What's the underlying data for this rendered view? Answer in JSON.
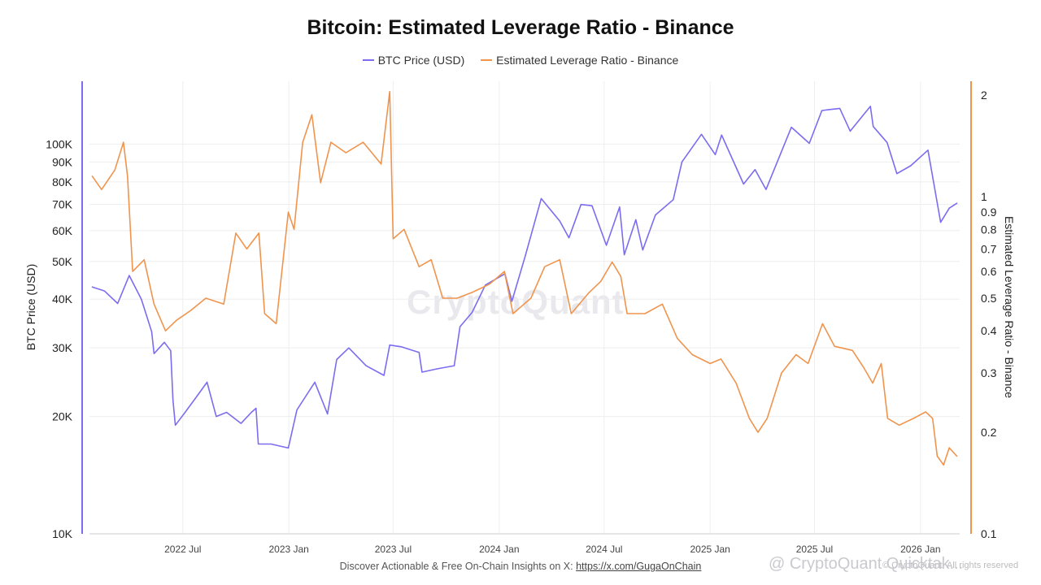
{
  "header": {
    "title": "Bitcoin: Estimated Leverage Ratio - Binance"
  },
  "legend": {
    "btc_label": "BTC Price (USD)",
    "elr_label": "Estimated Leverage Ratio - Binance"
  },
  "footer": {
    "text": "Discover Actionable & Free On-Chain Insights on X:",
    "link": "https://x.com/GugaOnChain",
    "badge": "@ CryptoQuant Quicktak...",
    "copyright": "© CryptoQuant. All rights reserved"
  },
  "watermark": "CryptoQuant",
  "colors": {
    "btc": "#7b6cf0",
    "elr": "#f0944d",
    "grid": "#eeeeee",
    "axis_text": "#222222"
  },
  "chart_data": {
    "type": "line",
    "title": "Bitcoin: Estimated Leverage Ratio - Binance",
    "x_range": [
      "2022-01-20",
      "2026-03-10"
    ],
    "x_ticks": [
      {
        "label": "2022 Jul",
        "date": "2022-07-01"
      },
      {
        "label": "2023 Jan",
        "date": "2023-01-01"
      },
      {
        "label": "2023 Jul",
        "date": "2023-07-01"
      },
      {
        "label": "2024 Jan",
        "date": "2024-01-01"
      },
      {
        "label": "2024 Jul",
        "date": "2024-07-01"
      },
      {
        "label": "2025 Jan",
        "date": "2025-01-01"
      },
      {
        "label": "2025 Jul",
        "date": "2025-07-01"
      },
      {
        "label": "2026 Jan",
        "date": "2026-01-01"
      }
    ],
    "y_left": {
      "label": "BTC Price (USD)",
      "scale": "log",
      "range": [
        10000,
        145000
      ],
      "ticks": [
        {
          "label": "10K",
          "value": 10000
        },
        {
          "label": "20K",
          "value": 20000
        },
        {
          "label": "30K",
          "value": 30000
        },
        {
          "label": "40K",
          "value": 40000
        },
        {
          "label": "50K",
          "value": 50000
        },
        {
          "label": "60K",
          "value": 60000
        },
        {
          "label": "70K",
          "value": 70000
        },
        {
          "label": "80K",
          "value": 80000
        },
        {
          "label": "90K",
          "value": 90000
        },
        {
          "label": "100K",
          "value": 100000
        }
      ]
    },
    "y_right": {
      "label": "Estimated Leverage Ratio - Binance",
      "scale": "log",
      "range": [
        0.1,
        2.2
      ],
      "ticks": [
        {
          "label": "2",
          "value": 2
        },
        {
          "label": "1",
          "value": 1
        },
        {
          "label": "0.9",
          "value": 0.9
        },
        {
          "label": "0.8",
          "value": 0.8
        },
        {
          "label": "0.7",
          "value": 0.7
        },
        {
          "label": "0.6",
          "value": 0.6
        },
        {
          "label": "0.5",
          "value": 0.5
        },
        {
          "label": "0.4",
          "value": 0.4
        },
        {
          "label": "0.3",
          "value": 0.3
        },
        {
          "label": "0.2",
          "value": 0.2
        },
        {
          "label": "0.1",
          "value": 0.1
        }
      ]
    },
    "series": [
      {
        "name": "BTC Price (USD)",
        "axis": "left",
        "points": [
          [
            "2022-01-25",
            43000
          ],
          [
            "2022-02-15",
            42000
          ],
          [
            "2022-03-10",
            39000
          ],
          [
            "2022-03-30",
            46000
          ],
          [
            "2022-04-20",
            40000
          ],
          [
            "2022-05-08",
            33000
          ],
          [
            "2022-05-12",
            29000
          ],
          [
            "2022-05-30",
            31000
          ],
          [
            "2022-06-10",
            29500
          ],
          [
            "2022-06-14",
            22000
          ],
          [
            "2022-06-18",
            19000
          ],
          [
            "2022-07-05",
            20500
          ],
          [
            "2022-07-25",
            22500
          ],
          [
            "2022-08-12",
            24500
          ],
          [
            "2022-08-28",
            20000
          ],
          [
            "2022-09-15",
            20500
          ],
          [
            "2022-10-10",
            19200
          ],
          [
            "2022-10-28",
            20500
          ],
          [
            "2022-11-05",
            21000
          ],
          [
            "2022-11-09",
            17000
          ],
          [
            "2022-12-01",
            17000
          ],
          [
            "2022-12-31",
            16600
          ],
          [
            "2023-01-15",
            20800
          ],
          [
            "2023-02-15",
            24500
          ],
          [
            "2023-03-09",
            20300
          ],
          [
            "2023-03-25",
            28000
          ],
          [
            "2023-04-15",
            30000
          ],
          [
            "2023-05-15",
            27000
          ],
          [
            "2023-06-15",
            25500
          ],
          [
            "2023-06-25",
            30500
          ],
          [
            "2023-07-15",
            30200
          ],
          [
            "2023-08-15",
            29200
          ],
          [
            "2023-08-20",
            26000
          ],
          [
            "2023-09-15",
            26500
          ],
          [
            "2023-10-15",
            27000
          ],
          [
            "2023-10-25",
            34000
          ],
          [
            "2023-11-15",
            37000
          ],
          [
            "2023-12-08",
            43500
          ],
          [
            "2024-01-11",
            46500
          ],
          [
            "2024-01-23",
            39500
          ],
          [
            "2024-02-15",
            51500
          ],
          [
            "2024-03-14",
            72500
          ],
          [
            "2024-04-15",
            63500
          ],
          [
            "2024-05-01",
            57500
          ],
          [
            "2024-05-22",
            70000
          ],
          [
            "2024-06-10",
            69500
          ],
          [
            "2024-07-05",
            55000
          ],
          [
            "2024-07-28",
            69000
          ],
          [
            "2024-08-05",
            52000
          ],
          [
            "2024-08-25",
            64000
          ],
          [
            "2024-09-06",
            53500
          ],
          [
            "2024-09-28",
            65800
          ],
          [
            "2024-10-29",
            72000
          ],
          [
            "2024-11-13",
            90000
          ],
          [
            "2024-12-17",
            106000
          ],
          [
            "2025-01-10",
            94000
          ],
          [
            "2025-01-21",
            105500
          ],
          [
            "2025-02-28",
            79000
          ],
          [
            "2025-03-20",
            86000
          ],
          [
            "2025-04-08",
            76500
          ],
          [
            "2025-05-22",
            110500
          ],
          [
            "2025-06-22",
            100500
          ],
          [
            "2025-07-14",
            122000
          ],
          [
            "2025-08-14",
            123500
          ],
          [
            "2025-09-01",
            108000
          ],
          [
            "2025-10-06",
            125000
          ],
          [
            "2025-10-11",
            111000
          ],
          [
            "2025-11-04",
            101000
          ],
          [
            "2025-11-21",
            84000
          ],
          [
            "2025-12-15",
            88000
          ],
          [
            "2026-01-14",
            96500
          ],
          [
            "2026-02-05",
            63000
          ],
          [
            "2026-02-20",
            68500
          ],
          [
            "2026-03-05",
            70500
          ]
        ]
      },
      {
        "name": "Estimated Leverage Ratio - Binance",
        "axis": "right",
        "points": [
          [
            "2022-01-25",
            1.15
          ],
          [
            "2022-02-10",
            1.05
          ],
          [
            "2022-03-05",
            1.2
          ],
          [
            "2022-03-20",
            1.45
          ],
          [
            "2022-03-27",
            1.15
          ],
          [
            "2022-04-05",
            0.6
          ],
          [
            "2022-04-25",
            0.65
          ],
          [
            "2022-05-12",
            0.48
          ],
          [
            "2022-06-01",
            0.4
          ],
          [
            "2022-06-20",
            0.43
          ],
          [
            "2022-07-15",
            0.46
          ],
          [
            "2022-08-10",
            0.5
          ],
          [
            "2022-09-10",
            0.48
          ],
          [
            "2022-10-01",
            0.78
          ],
          [
            "2022-10-20",
            0.7
          ],
          [
            "2022-11-10",
            0.78
          ],
          [
            "2022-11-20",
            0.45
          ],
          [
            "2022-12-10",
            0.42
          ],
          [
            "2022-12-31",
            0.9
          ],
          [
            "2023-01-10",
            0.8
          ],
          [
            "2023-01-25",
            1.45
          ],
          [
            "2023-02-10",
            1.75
          ],
          [
            "2023-02-25",
            1.1
          ],
          [
            "2023-03-15",
            1.45
          ],
          [
            "2023-04-10",
            1.35
          ],
          [
            "2023-05-10",
            1.45
          ],
          [
            "2023-06-10",
            1.25
          ],
          [
            "2023-06-25",
            2.05
          ],
          [
            "2023-07-01",
            0.75
          ],
          [
            "2023-07-20",
            0.8
          ],
          [
            "2023-08-15",
            0.62
          ],
          [
            "2023-09-05",
            0.65
          ],
          [
            "2023-09-25",
            0.5
          ],
          [
            "2023-10-20",
            0.5
          ],
          [
            "2023-11-15",
            0.52
          ],
          [
            "2023-12-15",
            0.55
          ],
          [
            "2024-01-10",
            0.6
          ],
          [
            "2024-01-25",
            0.45
          ],
          [
            "2024-02-25",
            0.5
          ],
          [
            "2024-03-20",
            0.62
          ],
          [
            "2024-04-15",
            0.65
          ],
          [
            "2024-05-05",
            0.45
          ],
          [
            "2024-06-05",
            0.52
          ],
          [
            "2024-06-25",
            0.56
          ],
          [
            "2024-07-15",
            0.64
          ],
          [
            "2024-07-30",
            0.58
          ],
          [
            "2024-08-10",
            0.45
          ],
          [
            "2024-09-10",
            0.45
          ],
          [
            "2024-10-10",
            0.48
          ],
          [
            "2024-11-05",
            0.38
          ],
          [
            "2024-12-01",
            0.34
          ],
          [
            "2025-01-01",
            0.32
          ],
          [
            "2025-01-20",
            0.33
          ],
          [
            "2025-02-15",
            0.28
          ],
          [
            "2025-03-10",
            0.22
          ],
          [
            "2025-03-25",
            0.2
          ],
          [
            "2025-04-10",
            0.22
          ],
          [
            "2025-05-05",
            0.3
          ],
          [
            "2025-05-30",
            0.34
          ],
          [
            "2025-06-20",
            0.32
          ],
          [
            "2025-07-15",
            0.42
          ],
          [
            "2025-08-05",
            0.36
          ],
          [
            "2025-09-05",
            0.35
          ],
          [
            "2025-09-25",
            0.31
          ],
          [
            "2025-10-10",
            0.28
          ],
          [
            "2025-10-25",
            0.32
          ],
          [
            "2025-11-05",
            0.22
          ],
          [
            "2025-11-25",
            0.21
          ],
          [
            "2025-12-20",
            0.22
          ],
          [
            "2026-01-10",
            0.23
          ],
          [
            "2026-01-22",
            0.22
          ],
          [
            "2026-01-30",
            0.17
          ],
          [
            "2026-02-10",
            0.16
          ],
          [
            "2026-02-20",
            0.18
          ],
          [
            "2026-03-05",
            0.17
          ]
        ]
      }
    ]
  }
}
